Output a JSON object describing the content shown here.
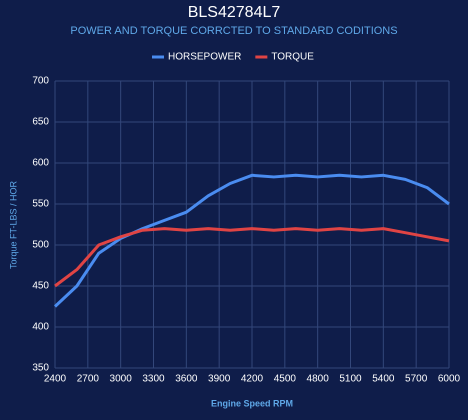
{
  "chart_data": {
    "type": "line",
    "title": "BLS42784L7",
    "subtitle": "POWER AND TORQUE CORRCTED TO STANDARD CODITIONS",
    "x_label": "Engine Speed RPM",
    "y_label": "Torque FT-LBS / HOR",
    "x": [
      2400,
      2600,
      2800,
      3000,
      3200,
      3400,
      3600,
      3800,
      4000,
      4200,
      4400,
      4600,
      4800,
      5000,
      5200,
      5400,
      5600,
      5800,
      6000
    ],
    "series": [
      {
        "name": "HORSEPOWER",
        "color": "#4a8cf0",
        "values": [
          425,
          450,
          490,
          508,
          520,
          530,
          540,
          560,
          575,
          585,
          583,
          585,
          583,
          585,
          583,
          585,
          580,
          570,
          550
        ]
      },
      {
        "name": "TORQUE",
        "color": "#e04444",
        "values": [
          450,
          470,
          500,
          510,
          518,
          520,
          518,
          520,
          518,
          520,
          518,
          520,
          518,
          520,
          518,
          520,
          515,
          510,
          505
        ]
      }
    ],
    "xlim": [
      2400,
      6000
    ],
    "xticks": [
      2400,
      2700,
      3000,
      3300,
      3600,
      3900,
      4200,
      4500,
      4800,
      5100,
      5400,
      5700,
      6000
    ],
    "ylim": [
      350,
      700
    ],
    "yticks": [
      350,
      400,
      450,
      500,
      550,
      600,
      650,
      700
    ],
    "grid": true,
    "legend": "top"
  }
}
